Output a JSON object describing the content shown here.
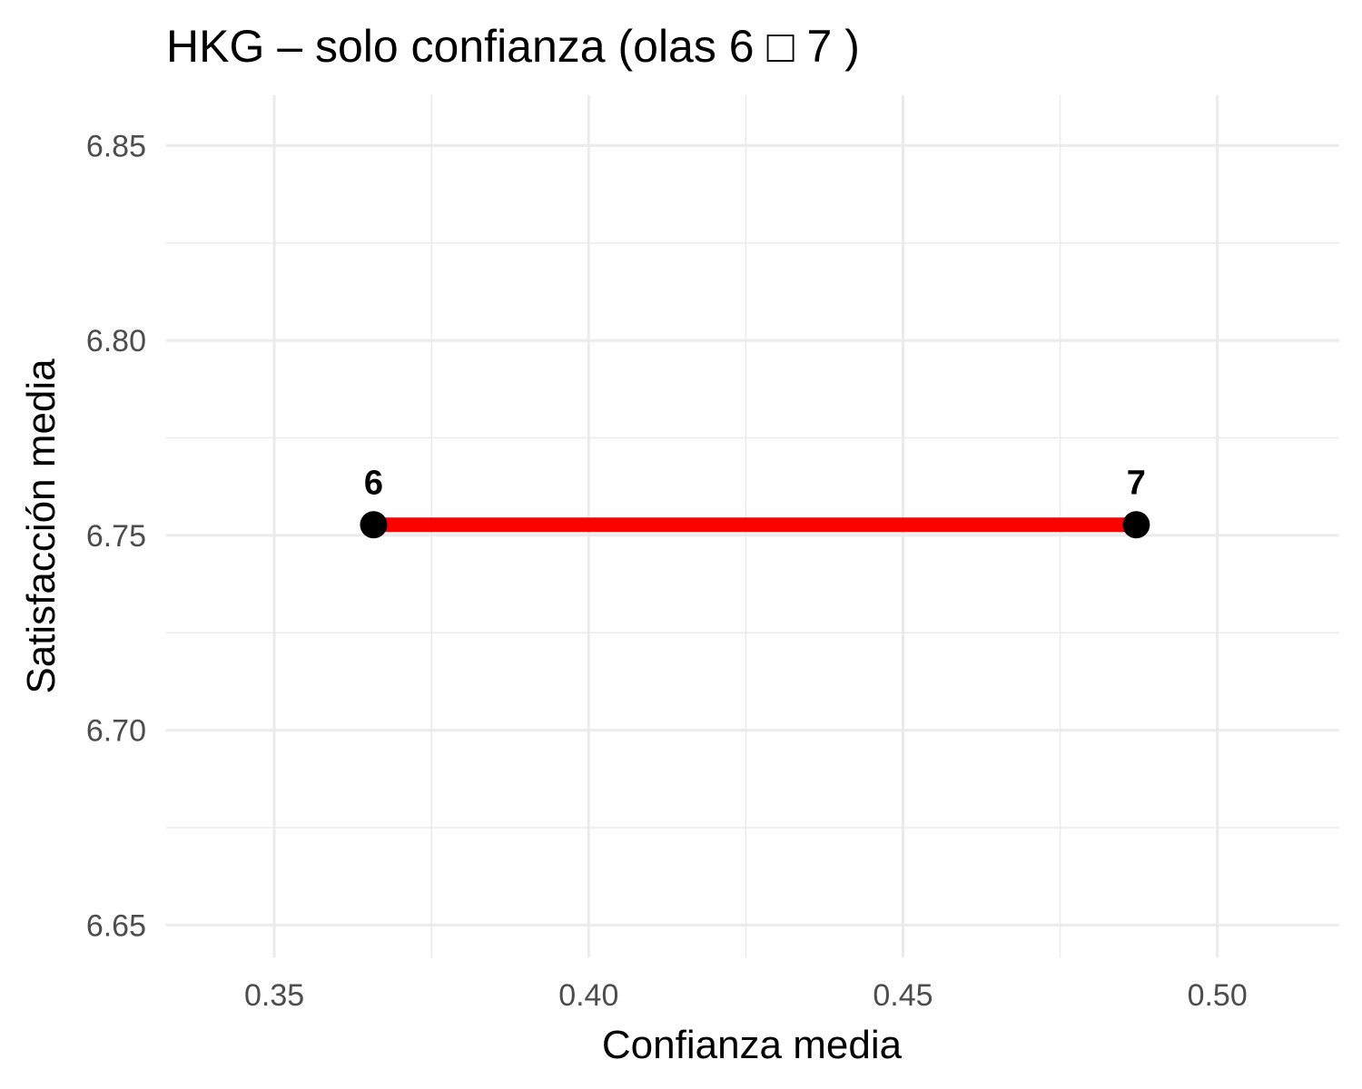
{
  "chart_data": {
    "type": "line",
    "title": "HKG – solo confianza (olas 6 □ 7 )",
    "xlabel": "Confianza media",
    "ylabel": "Satisfacción media",
    "xlim": [
      0.3328,
      0.5194
    ],
    "ylim": [
      6.6417,
      6.8629
    ],
    "xticks": [
      0.35,
      0.4,
      0.45,
      0.5
    ],
    "xtick_labels": [
      "0.35",
      "0.40",
      "0.45",
      "0.50"
    ],
    "yticks": [
      6.65,
      6.7,
      6.75,
      6.8,
      6.85
    ],
    "ytick_labels": [
      "6.65",
      "6.70",
      "6.75",
      "6.80",
      "6.85"
    ],
    "grid": true,
    "series": [
      {
        "color": "#ff0000",
        "points": [
          {
            "x": 0.3658,
            "y": 6.7527,
            "label": "6"
          },
          {
            "x": 0.4871,
            "y": 6.7527,
            "label": "7"
          }
        ]
      }
    ],
    "point_color": "#000000",
    "grid_color": "#ebebeb"
  }
}
